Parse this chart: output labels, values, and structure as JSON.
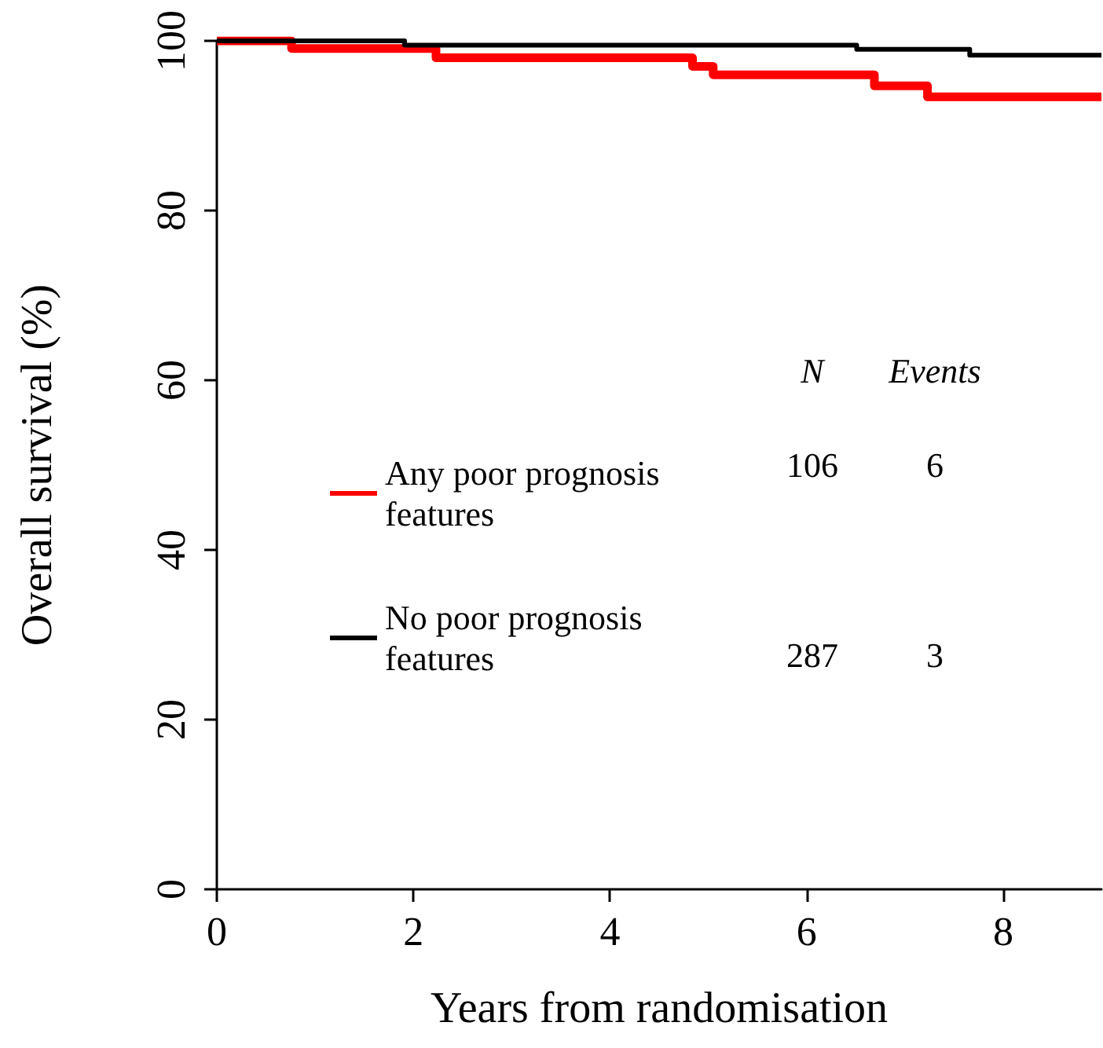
{
  "chart_data": {
    "type": "step",
    "xlabel": "Years from randomisation",
    "ylabel": "Overall survival (%)",
    "xlim": [
      0,
      9
    ],
    "xticks": [
      0,
      2,
      4,
      6,
      8
    ],
    "ylim": [
      0,
      100
    ],
    "yticks": [
      0,
      20,
      40,
      60,
      80,
      100
    ],
    "series": [
      {
        "name": "Any poor prognosis features",
        "color": "#ff0000",
        "x": [
          0,
          0.76,
          2.23,
          4.84,
          5.05,
          6.69,
          7.23,
          9
        ],
        "values": [
          100,
          99.1,
          98.0,
          97.0,
          96.0,
          94.7,
          93.4,
          93.4
        ]
      },
      {
        "name": "No poor prognosis features",
        "color": "#000000",
        "x": [
          0,
          1.91,
          6.51,
          7.66,
          9
        ],
        "values": [
          100,
          99.5,
          99.0,
          98.3,
          98.3
        ]
      }
    ],
    "legend": "left",
    "grid": false,
    "marker": "none",
    "line_style": "solid",
    "annotations": [
      "N",
      "Events",
      "106",
      "6",
      "287",
      "3"
    ]
  }
}
